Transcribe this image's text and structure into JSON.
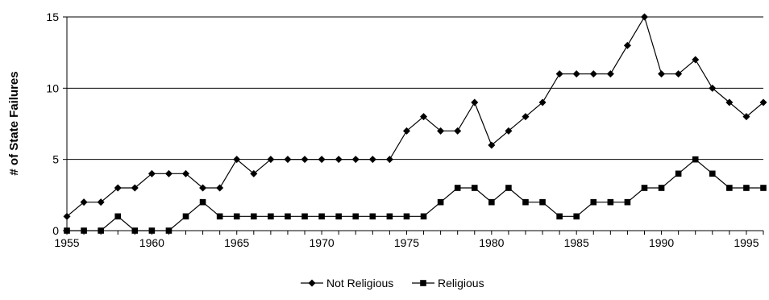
{
  "chart_data": {
    "type": "line",
    "title": "",
    "xlabel": "",
    "ylabel": "# of State Failures",
    "xlim": [
      1955,
      1996
    ],
    "ylim": [
      0,
      15
    ],
    "x_ticks": [
      "1955",
      "1960",
      "1965",
      "1970",
      "1975",
      "1980",
      "1985",
      "1990",
      "1995"
    ],
    "y_ticks": [
      "0",
      "5",
      "10",
      "15"
    ],
    "grid": "horizontal",
    "legend_position": "bottom",
    "x": [
      1955,
      1956,
      1957,
      1958,
      1959,
      1960,
      1961,
      1962,
      1963,
      1964,
      1965,
      1966,
      1967,
      1968,
      1969,
      1970,
      1971,
      1972,
      1973,
      1974,
      1975,
      1976,
      1977,
      1978,
      1979,
      1980,
      1981,
      1982,
      1983,
      1984,
      1985,
      1986,
      1987,
      1988,
      1989,
      1990,
      1991,
      1992,
      1993,
      1994,
      1995,
      1996
    ],
    "series": [
      {
        "name": "Not Religious",
        "marker": "diamond",
        "color": "#000000",
        "values": [
          1,
          2,
          2,
          3,
          3,
          4,
          4,
          4,
          3,
          3,
          5,
          4,
          5,
          5,
          5,
          5,
          5,
          5,
          5,
          5,
          7,
          8,
          7,
          7,
          9,
          6,
          7,
          8,
          9,
          11,
          11,
          11,
          11,
          13,
          15,
          11,
          11,
          12,
          10,
          9,
          8,
          9
        ]
      },
      {
        "name": "Religious",
        "marker": "square",
        "color": "#000000",
        "values": [
          0,
          0,
          0,
          1,
          0,
          0,
          0,
          1,
          2,
          1,
          1,
          1,
          1,
          1,
          1,
          1,
          1,
          1,
          1,
          1,
          1,
          1,
          2,
          3,
          3,
          2,
          3,
          2,
          2,
          1,
          1,
          2,
          2,
          2,
          3,
          3,
          4,
          5,
          4,
          3,
          3,
          3
        ]
      }
    ]
  }
}
